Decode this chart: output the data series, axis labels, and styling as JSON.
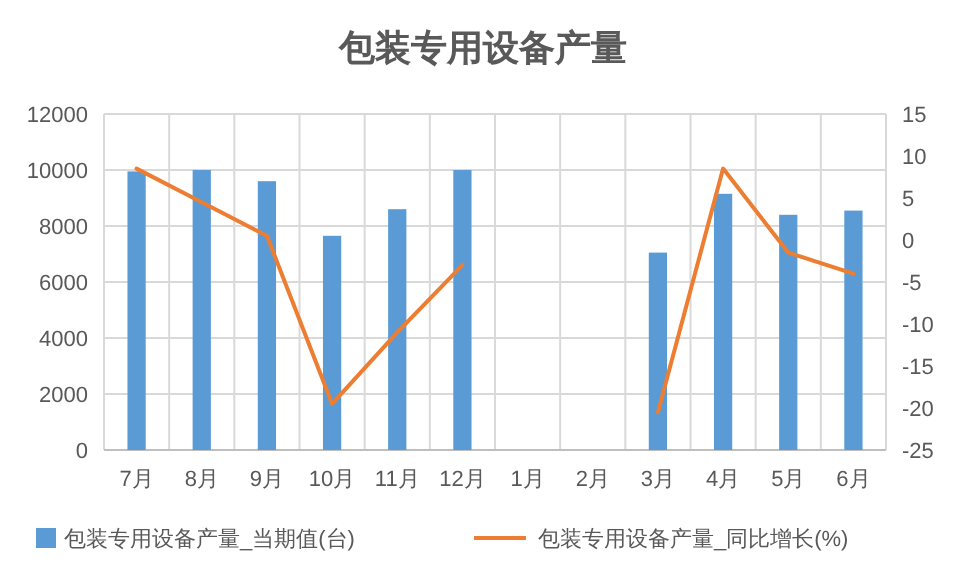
{
  "chart_data": {
    "type": "bar",
    "title": "包装专用设备产量",
    "categories": [
      "7月",
      "8月",
      "9月",
      "10月",
      "11月",
      "12月",
      "1月",
      "2月",
      "3月",
      "4月",
      "5月",
      "6月"
    ],
    "series": [
      {
        "name": "包装专用设备产量_当期值(台)",
        "color": "#5b9bd5",
        "values": [
          9950,
          10000,
          9600,
          7650,
          8600,
          10000,
          null,
          null,
          7050,
          9150,
          8400,
          8550
        ]
      },
      {
        "name": "包装专用设备产量_同比增长(%)",
        "type": "line",
        "axis": "y2",
        "color": "#ed7d31",
        "values": [
          8.5,
          4.5,
          0.5,
          -19.5,
          -11,
          -3,
          null,
          null,
          -20.5,
          8.5,
          -1.5,
          -4
        ]
      }
    ],
    "ylim": [
      0,
      12000
    ],
    "yticks": [
      0,
      2000,
      4000,
      6000,
      8000,
      10000,
      12000
    ],
    "y2lim": [
      -25,
      15
    ],
    "y2ticks": [
      -25,
      -20,
      -15,
      -10,
      -5,
      0,
      5,
      10,
      15
    ],
    "grid": true,
    "legend": "bottom"
  }
}
